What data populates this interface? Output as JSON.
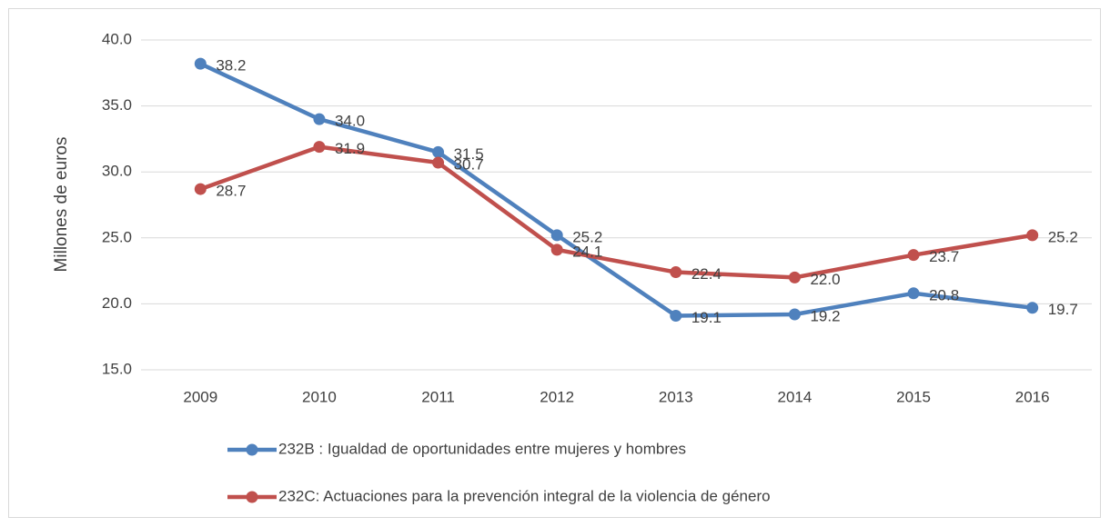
{
  "chart_data": {
    "type": "line",
    "y_label": "Millones de euros",
    "categories": [
      "2009",
      "2010",
      "2011",
      "2012",
      "2013",
      "2014",
      "2015",
      "2016"
    ],
    "series": [
      {
        "name": "232B : Igualdad de oportunidades entre mujeres y hombres",
        "color": "#4f81bd",
        "values": [
          38.2,
          34.0,
          31.5,
          25.2,
          19.1,
          19.2,
          20.8,
          19.7
        ],
        "value_labels": [
          "38.2",
          "34.0",
          "31.5",
          "25.2",
          "19.1",
          "19.2",
          "20.8",
          "19.7"
        ]
      },
      {
        "name": "232C: Actuaciones para la prevención integral de la violencia de género",
        "color": "#c0504d",
        "values": [
          28.7,
          31.9,
          30.7,
          24.1,
          22.4,
          22.0,
          23.7,
          25.2
        ],
        "value_labels": [
          "28.7",
          "31.9",
          "30.7",
          "24.1",
          "22.4",
          "22.0",
          "23.7",
          "25.2"
        ]
      }
    ],
    "ylim": [
      15,
      40
    ],
    "yticks": [
      {
        "value": 15,
        "label": "15.0"
      },
      {
        "value": 20,
        "label": "20.0"
      },
      {
        "value": 25,
        "label": "25.0"
      },
      {
        "value": 30,
        "label": "30.0"
      },
      {
        "value": 35,
        "label": "35.0"
      },
      {
        "value": 40,
        "label": "40.0"
      }
    ],
    "grid": true,
    "legend": "bottom"
  }
}
